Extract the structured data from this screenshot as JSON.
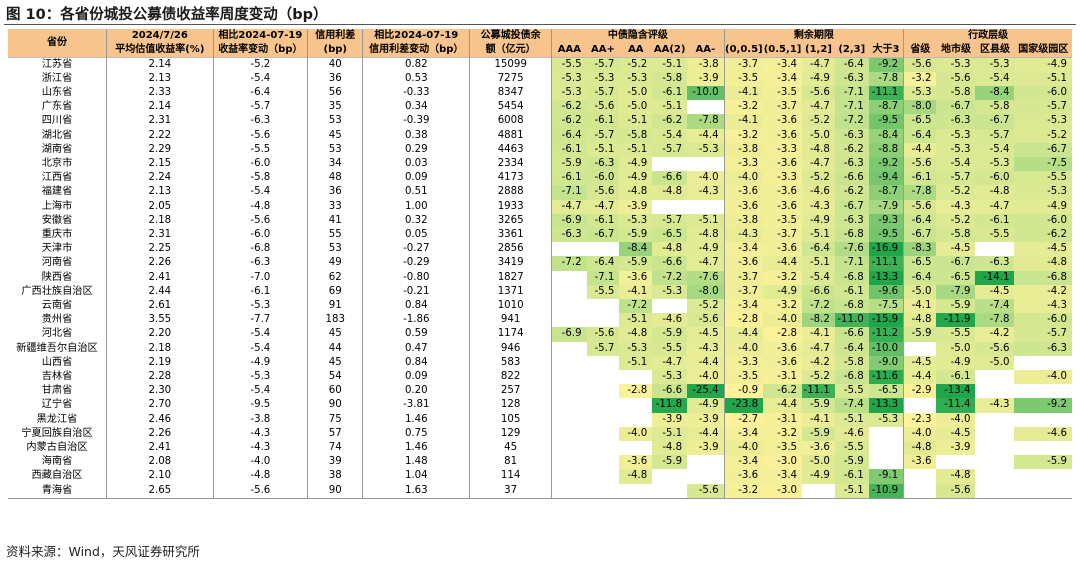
{
  "title": "图 10：各省份城投公募债收益率周度变动（bp）",
  "source": "资料来源：Wind，天风证券研究所",
  "colors": {
    "header_bg": "#F7C48D",
    "scale_low": "#1FA64A",
    "scale_mid": "#C6E48E",
    "scale_high": "#FFF29A"
  },
  "headers": {
    "province": "省份",
    "val_line1": "2024/7/26",
    "val_line2": "平均估值收益率(%)",
    "chg_line1": "相比2024-07-19",
    "chg_line2": "收益率变动（bp）",
    "spread_line1": "信用利差",
    "spread_line2": "(bp)",
    "spchg_line1": "相比2024-07-19",
    "spchg_line2": "信用利差变动（bp）",
    "bal_line1": "公募城投债余",
    "bal_line2": "额（亿元）",
    "group_rating": "中债隐含评级",
    "group_term": "剩余期限",
    "group_admin": "行政层级",
    "rating": [
      "AAA",
      "AA+",
      "AA",
      "AA(2)",
      "AA-"
    ],
    "term": [
      "(0,0.5]",
      "(0.5,1]",
      "(1,2]",
      "(2,3]",
      "大于3"
    ],
    "admin": [
      "省级",
      "地市级",
      "区县级",
      "国家级园区"
    ]
  },
  "rows": [
    {
      "province": "江苏省",
      "yield": "2.14",
      "chg": "-5.2",
      "spread": "40",
      "spread_chg": "0.82",
      "balance": "15099",
      "rating": [
        "-5.5",
        "-5.7",
        "-5.2",
        "-5.1",
        "-3.8"
      ],
      "term": [
        "-3.7",
        "-3.4",
        "-4.7",
        "-6.4",
        "-9.2"
      ],
      "admin": [
        "-5.6",
        "-5.3",
        "-5.3",
        "-4.9"
      ]
    },
    {
      "province": "浙江省",
      "yield": "2.13",
      "chg": "-5.4",
      "spread": "36",
      "spread_chg": "0.53",
      "balance": "7275",
      "rating": [
        "-5.3",
        "-5.3",
        "-5.3",
        "-5.8",
        "-3.9"
      ],
      "term": [
        "-3.5",
        "-3.4",
        "-4.9",
        "-6.3",
        "-7.8"
      ],
      "admin": [
        "-3.2",
        "-5.6",
        "-5.4",
        "-5.1"
      ]
    },
    {
      "province": "山东省",
      "yield": "2.33",
      "chg": "-6.4",
      "spread": "56",
      "spread_chg": "-0.33",
      "balance": "8347",
      "rating": [
        "-5.3",
        "-5.7",
        "-5.0",
        "-6.1",
        "-10.0"
      ],
      "term": [
        "-4.1",
        "-3.5",
        "-5.6",
        "-7.1",
        "-11.1"
      ],
      "admin": [
        "-5.3",
        "-5.8",
        "-8.4",
        "-6.0"
      ]
    },
    {
      "province": "广东省",
      "yield": "2.14",
      "chg": "-5.7",
      "spread": "35",
      "spread_chg": "0.34",
      "balance": "5454",
      "rating": [
        "-6.2",
        "-5.6",
        "-5.0",
        "-5.1",
        ""
      ],
      "term": [
        "-3.2",
        "-3.7",
        "-4.7",
        "-7.1",
        "-8.7"
      ],
      "admin": [
        "-8.0",
        "-6.7",
        "-5.8",
        "-5.7"
      ]
    },
    {
      "province": "四川省",
      "yield": "2.31",
      "chg": "-6.3",
      "spread": "53",
      "spread_chg": "-0.39",
      "balance": "6008",
      "rating": [
        "-6.2",
        "-6.1",
        "-5.1",
        "-6.2",
        "-7.8"
      ],
      "term": [
        "-4.1",
        "-3.6",
        "-5.2",
        "-7.2",
        "-9.5"
      ],
      "admin": [
        "-6.5",
        "-6.3",
        "-6.7",
        "-5.3"
      ]
    },
    {
      "province": "湖北省",
      "yield": "2.22",
      "chg": "-5.6",
      "spread": "45",
      "spread_chg": "0.38",
      "balance": "4881",
      "rating": [
        "-6.4",
        "-5.7",
        "-5.8",
        "-5.4",
        "-4.4"
      ],
      "term": [
        "-3.2",
        "-3.6",
        "-5.0",
        "-6.3",
        "-8.4"
      ],
      "admin": [
        "-6.4",
        "-5.3",
        "-5.7",
        "-5.2"
      ]
    },
    {
      "province": "湖南省",
      "yield": "2.29",
      "chg": "-5.5",
      "spread": "53",
      "spread_chg": "0.29",
      "balance": "4463",
      "rating": [
        "-6.1",
        "-5.1",
        "-5.1",
        "-5.7",
        "-5.3"
      ],
      "term": [
        "-3.8",
        "-3.3",
        "-4.8",
        "-6.2",
        "-8.8"
      ],
      "admin": [
        "-4.4",
        "-5.3",
        "-5.4",
        "-6.7"
      ]
    },
    {
      "province": "北京市",
      "yield": "2.15",
      "chg": "-6.0",
      "spread": "34",
      "spread_chg": "0.03",
      "balance": "2334",
      "rating": [
        "-5.9",
        "-6.3",
        "-4.9",
        "",
        ""
      ],
      "term": [
        "-3.3",
        "-3.6",
        "-4.7",
        "-6.3",
        "-9.2"
      ],
      "admin": [
        "-5.6",
        "-5.4",
        "-5.3",
        "-7.5"
      ]
    },
    {
      "province": "江西省",
      "yield": "2.24",
      "chg": "-5.8",
      "spread": "48",
      "spread_chg": "0.09",
      "balance": "4173",
      "rating": [
        "-6.1",
        "-6.0",
        "-4.9",
        "-6.6",
        "-4.0"
      ],
      "term": [
        "-4.0",
        "-3.3",
        "-5.2",
        "-6.6",
        "-9.4"
      ],
      "admin": [
        "-6.1",
        "-5.7",
        "-6.0",
        "-5.5"
      ]
    },
    {
      "province": "福建省",
      "yield": "2.13",
      "chg": "-5.4",
      "spread": "36",
      "spread_chg": "0.51",
      "balance": "2888",
      "rating": [
        "-7.1",
        "-5.6",
        "-4.8",
        "-4.8",
        "-4.3"
      ],
      "term": [
        "-3.6",
        "-3.6",
        "-4.6",
        "-6.2",
        "-8.7"
      ],
      "admin": [
        "-7.8",
        "-5.2",
        "-4.8",
        "-5.3"
      ]
    },
    {
      "province": "上海市",
      "yield": "2.05",
      "chg": "-4.8",
      "spread": "33",
      "spread_chg": "1.00",
      "balance": "1933",
      "rating": [
        "-4.7",
        "-4.7",
        "-3.9",
        "",
        ""
      ],
      "term": [
        "-3.6",
        "-3.6",
        "-4.3",
        "-6.7",
        "-7.9"
      ],
      "admin": [
        "-5.6",
        "-4.3",
        "-4.7",
        "-4.9"
      ]
    },
    {
      "province": "安徽省",
      "yield": "2.18",
      "chg": "-5.6",
      "spread": "41",
      "spread_chg": "0.32",
      "balance": "3265",
      "rating": [
        "-6.9",
        "-6.1",
        "-5.3",
        "-5.7",
        "-5.1"
      ],
      "term": [
        "-3.8",
        "-3.5",
        "-4.9",
        "-6.3",
        "-9.3"
      ],
      "admin": [
        "-6.4",
        "-5.2",
        "-6.1",
        "-6.0"
      ]
    },
    {
      "province": "重庆市",
      "yield": "2.31",
      "chg": "-6.0",
      "spread": "55",
      "spread_chg": "0.05",
      "balance": "3361",
      "rating": [
        "-6.3",
        "-6.7",
        "-5.9",
        "-6.5",
        "-4.8"
      ],
      "term": [
        "-4.3",
        "-3.7",
        "-5.1",
        "-6.8",
        "-9.5"
      ],
      "admin": [
        "-6.7",
        "-5.8",
        "-5.5",
        "-6.2"
      ]
    },
    {
      "province": "天津市",
      "yield": "2.25",
      "chg": "-6.8",
      "spread": "53",
      "spread_chg": "-0.27",
      "balance": "2856",
      "rating": [
        "",
        "",
        "-8.4",
        "-4.8",
        "-4.9"
      ],
      "term": [
        "-3.4",
        "-3.6",
        "-6.4",
        "-7.6",
        "-16.9"
      ],
      "admin": [
        "-8.3",
        "-4.5",
        "",
        "-4.5"
      ]
    },
    {
      "province": "河南省",
      "yield": "2.26",
      "chg": "-6.3",
      "spread": "49",
      "spread_chg": "-0.29",
      "balance": "3419",
      "rating": [
        "-7.2",
        "-6.4",
        "-5.9",
        "-6.6",
        "-4.7"
      ],
      "term": [
        "-3.6",
        "-4.4",
        "-5.1",
        "-7.1",
        "-11.1"
      ],
      "admin": [
        "-6.5",
        "-6.7",
        "-6.3",
        "-4.8"
      ]
    },
    {
      "province": "陕西省",
      "yield": "2.41",
      "chg": "-7.0",
      "spread": "62",
      "spread_chg": "-0.80",
      "balance": "1827",
      "rating": [
        "",
        "-7.1",
        "-3.6",
        "-7.2",
        "-7.6"
      ],
      "term": [
        "-3.7",
        "-3.2",
        "-5.4",
        "-6.8",
        "-13.3"
      ],
      "admin": [
        "-6.4",
        "-6.5",
        "-14.1",
        "-6.8"
      ]
    },
    {
      "province": "广西壮族自治区",
      "yield": "2.44",
      "chg": "-6.1",
      "spread": "69",
      "spread_chg": "-0.21",
      "balance": "1371",
      "rating": [
        "",
        "-5.5",
        "-4.1",
        "-5.3",
        "-8.0"
      ],
      "term": [
        "-3.7",
        "-4.9",
        "-6.6",
        "-6.1",
        "-9.6"
      ],
      "admin": [
        "-5.0",
        "-7.9",
        "-4.5",
        "-4.2"
      ]
    },
    {
      "province": "云南省",
      "yield": "2.61",
      "chg": "-5.3",
      "spread": "91",
      "spread_chg": "0.84",
      "balance": "1010",
      "rating": [
        "",
        "",
        "-7.2",
        "",
        "-5.2"
      ],
      "term": [
        "-3.4",
        "-3.2",
        "-7.2",
        "-6.8",
        "-7.5"
      ],
      "admin": [
        "-4.1",
        "-5.9",
        "-7.4",
        "-4.3"
      ]
    },
    {
      "province": "贵州省",
      "yield": "3.55",
      "chg": "-7.7",
      "spread": "183",
      "spread_chg": "-1.86",
      "balance": "941",
      "rating": [
        "",
        "",
        "-5.1",
        "-4.6",
        "-5.6"
      ],
      "term": [
        "-2.8",
        "-4.0",
        "-8.2",
        "-11.0",
        "-15.9"
      ],
      "admin": [
        "-4.8",
        "-11.9",
        "-7.8",
        "-6.0"
      ]
    },
    {
      "province": "河北省",
      "yield": "2.20",
      "chg": "-5.4",
      "spread": "45",
      "spread_chg": "0.59",
      "balance": "1174",
      "rating": [
        "-6.9",
        "-5.6",
        "-4.8",
        "-5.9",
        "-4.5"
      ],
      "term": [
        "-4.4",
        "-2.8",
        "-4.1",
        "-6.6",
        "-11.2"
      ],
      "admin": [
        "-5.9",
        "-5.5",
        "-4.2",
        "-5.7"
      ]
    },
    {
      "province": "新疆维吾尔自治区",
      "yield": "2.18",
      "chg": "-5.4",
      "spread": "44",
      "spread_chg": "0.47",
      "balance": "946",
      "rating": [
        "",
        "-5.7",
        "-5.3",
        "-5.5",
        "-4.3"
      ],
      "term": [
        "-4.0",
        "-3.6",
        "-4.7",
        "-6.4",
        "-10.0"
      ],
      "admin": [
        "",
        "-5.0",
        "-5.6",
        "-6.3"
      ]
    },
    {
      "province": "山西省",
      "yield": "2.19",
      "chg": "-4.9",
      "spread": "45",
      "spread_chg": "0.84",
      "balance": "583",
      "rating": [
        "",
        "",
        "-5.1",
        "-4.7",
        "-4.4"
      ],
      "term": [
        "-3.3",
        "-3.6",
        "-4.2",
        "-5.8",
        "-9.0"
      ],
      "admin": [
        "-4.5",
        "-4.9",
        "-5.0",
        ""
      ]
    },
    {
      "province": "吉林省",
      "yield": "2.28",
      "chg": "-5.3",
      "spread": "54",
      "spread_chg": "0.09",
      "balance": "822",
      "rating": [
        "",
        "",
        "",
        "-5.3",
        "-4.0"
      ],
      "term": [
        "-3.5",
        "-3.1",
        "-5.2",
        "-6.8",
        "-11.6"
      ],
      "admin": [
        "-4.4",
        "-6.1",
        "",
        "-4.0"
      ]
    },
    {
      "province": "甘肃省",
      "yield": "2.30",
      "chg": "-5.4",
      "spread": "60",
      "spread_chg": "0.20",
      "balance": "257",
      "rating": [
        "",
        "",
        "-2.8",
        "-6.6",
        "-25.4"
      ],
      "term": [
        "-0.9",
        "-6.2",
        "-11.1",
        "-5.5",
        "-6.5"
      ],
      "admin": [
        "-2.9",
        "-13.4",
        "",
        ""
      ]
    },
    {
      "province": "辽宁省",
      "yield": "2.70",
      "chg": "-9.5",
      "spread": "90",
      "spread_chg": "-3.81",
      "balance": "128",
      "rating": [
        "",
        "",
        "",
        "-11.8",
        "-4.9"
      ],
      "term": [
        "-23.8",
        "-4.4",
        "-5.9",
        "-7.4",
        "-13.3"
      ],
      "admin": [
        "",
        "-11.4",
        "-4.3",
        "-9.2"
      ]
    },
    {
      "province": "黑龙江省",
      "yield": "2.46",
      "chg": "-3.8",
      "spread": "75",
      "spread_chg": "1.46",
      "balance": "105",
      "rating": [
        "",
        "",
        "",
        "-3.9",
        "-3.9"
      ],
      "term": [
        "-2.7",
        "-3.1",
        "-4.1",
        "-5.1",
        "-5.3"
      ],
      "admin": [
        "-2.3",
        "-4.0",
        "",
        ""
      ]
    },
    {
      "province": "宁夏回族自治区",
      "yield": "2.26",
      "chg": "-4.3",
      "spread": "57",
      "spread_chg": "0.75",
      "balance": "129",
      "rating": [
        "",
        "",
        "-4.0",
        "-5.1",
        "-4.4"
      ],
      "term": [
        "-3.4",
        "-3.2",
        "-5.9",
        "-4.6",
        ""
      ],
      "admin": [
        "-4.0",
        "-4.5",
        "",
        "-4.6"
      ]
    },
    {
      "province": "内蒙古自治区",
      "yield": "2.41",
      "chg": "-4.3",
      "spread": "74",
      "spread_chg": "1.46",
      "balance": "45",
      "rating": [
        "",
        "",
        "",
        "-4.8",
        "-3.9"
      ],
      "term": [
        "-4.0",
        "-3.5",
        "-3.6",
        "-5.5",
        ""
      ],
      "admin": [
        "-4.8",
        "-3.9",
        "",
        ""
      ]
    },
    {
      "province": "海南省",
      "yield": "2.08",
      "chg": "-4.0",
      "spread": "39",
      "spread_chg": "1.48",
      "balance": "81",
      "rating": [
        "",
        "",
        "-3.6",
        "-5.9",
        ""
      ],
      "term": [
        "-3.4",
        "-3.0",
        "-5.0",
        "-5.9",
        ""
      ],
      "admin": [
        "-3.6",
        "",
        "",
        "-5.9"
      ]
    },
    {
      "province": "西藏自治区",
      "yield": "2.10",
      "chg": "-4.8",
      "spread": "38",
      "spread_chg": "1.04",
      "balance": "114",
      "rating": [
        "",
        "",
        "-4.8",
        "",
        ""
      ],
      "term": [
        "-3.6",
        "-3.4",
        "-4.9",
        "-6.1",
        "-9.1"
      ],
      "admin": [
        "",
        "-4.8",
        "",
        ""
      ]
    },
    {
      "province": "青海省",
      "yield": "2.65",
      "chg": "-5.6",
      "spread": "90",
      "spread_chg": "1.63",
      "balance": "37",
      "rating": [
        "",
        "",
        "",
        "",
        "-5.6"
      ],
      "term": [
        "-3.2",
        "-3.0",
        "",
        "-5.1",
        "-10.9"
      ],
      "admin": [
        "",
        "-5.6",
        "",
        ""
      ]
    }
  ]
}
